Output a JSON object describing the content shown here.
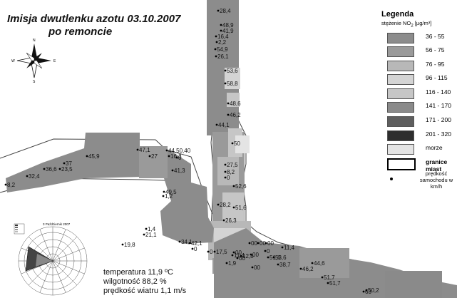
{
  "title": {
    "line1": "Imisja dwutlenku azotu 03.10.2007",
    "line2": "po remoncie"
  },
  "legend": {
    "heading": "Legenda",
    "subtitle_prefix": "stężenie NO",
    "subtitle_sub": "2",
    "subtitle_unit": " [µg/m³]",
    "classes": [
      {
        "label": "36 - 55",
        "color": "#8c8c8c"
      },
      {
        "label": "56 - 75",
        "color": "#9a9a9a"
      },
      {
        "label": "76 - 95",
        "color": "#b8b8b8"
      },
      {
        "label": "96 - 115",
        "color": "#d4d4d4"
      },
      {
        "label": "116 - 140",
        "color": "#c6c6c6"
      },
      {
        "label": "141 - 170",
        "color": "#8a8a8a"
      },
      {
        "label": "171 - 200",
        "color": "#5e5e5e"
      },
      {
        "label": "201 - 320",
        "color": "#2e2e2e"
      }
    ],
    "sea_label": "morze",
    "sea_color": "#e4e4e4",
    "border_label": "granice miast",
    "speed_label_1": "prędkość",
    "speed_label_2": "samochodu w km/h"
  },
  "weather": {
    "temp_prefix": "temperatura 11,9 ",
    "temp_unit": "ºC",
    "humidity": "wilgotność 88,2 %",
    "wind": "prędkość wiatru 1,1 m/s"
  },
  "windrose": {
    "title": "3 Październik 2007"
  },
  "compass": {
    "n": "N",
    "s": "S",
    "e": "E",
    "w": "W"
  },
  "points": [
    {
      "label": "28,4"
    },
    {
      "label": "48,9"
    },
    {
      "label": "41,9"
    },
    {
      "label": "16,4"
    },
    {
      "label": "2,2"
    },
    {
      "label": "54,9"
    },
    {
      "label": "26,1"
    },
    {
      "label": "53,6"
    },
    {
      "label": "58,8"
    },
    {
      "label": "48,6"
    },
    {
      "label": "46,2"
    },
    {
      "label": "44,1"
    },
    {
      "label": "50"
    },
    {
      "label": "27,5"
    },
    {
      "label": "8,2"
    },
    {
      "label": "0"
    },
    {
      "label": "52,6"
    },
    {
      "label": "28,2"
    },
    {
      "label": "51,6"
    },
    {
      "label": "26,3"
    },
    {
      "label": "8,2"
    },
    {
      "label": "32,4"
    },
    {
      "label": "36,6"
    },
    {
      "label": "23,5"
    },
    {
      "label": "37"
    },
    {
      "label": "45,9"
    },
    {
      "label": "47,1"
    },
    {
      "label": "44,50,40"
    },
    {
      "label": "27"
    },
    {
      "label": "16,3"
    },
    {
      "label": "0"
    },
    {
      "label": "41,3"
    },
    {
      "label": "49,5"
    },
    {
      "label": "1,2"
    },
    {
      "label": "1,4"
    },
    {
      "label": "21,1"
    },
    {
      "label": "19,8"
    },
    {
      "label": "34,1"
    },
    {
      "label": "42,1"
    },
    {
      "label": "0"
    },
    {
      "label": "0"
    },
    {
      "label": "17,5"
    },
    {
      "label": "1,9"
    },
    {
      "label": "00"
    },
    {
      "label": "00"
    },
    {
      "label": "00"
    },
    {
      "label": "00"
    },
    {
      "label": "11,4"
    },
    {
      "label": "00"
    },
    {
      "label": "0"
    },
    {
      "label": "12,8"
    },
    {
      "label": "00"
    },
    {
      "label": "00"
    },
    {
      "label": "51,6"
    },
    {
      "label": "53,6"
    },
    {
      "label": "11,4"
    },
    {
      "label": "38,7"
    },
    {
      "label": "46,2"
    },
    {
      "label": "44,6"
    },
    {
      "label": "51,7"
    },
    {
      "label": "51,7"
    },
    {
      "label": "63"
    },
    {
      "label": "50,2"
    }
  ]
}
